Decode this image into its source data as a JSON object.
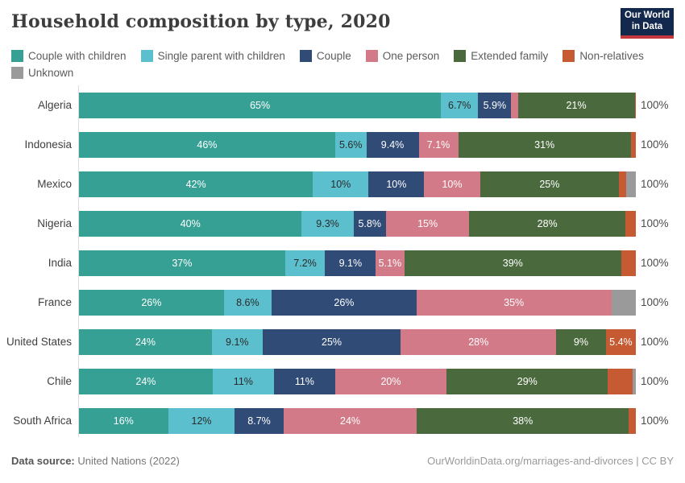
{
  "header": {
    "title": "Household composition by type, 2020",
    "logo_line1": "Our World",
    "logo_line2": "in Data",
    "logo_bg": "#12294d",
    "logo_stripe": "#c3383c"
  },
  "legend": [
    {
      "label": "Couple with children",
      "color": "#36a095",
      "dark_text": false
    },
    {
      "label": "Single parent with children",
      "color": "#5cbfce",
      "dark_text": true
    },
    {
      "label": "Couple",
      "color": "#2f4b76",
      "dark_text": false
    },
    {
      "label": "One person",
      "color": "#d37a89",
      "dark_text": false
    },
    {
      "label": "Extended family",
      "color": "#4a6a3e",
      "dark_text": false
    },
    {
      "label": "Non-relatives",
      "color": "#c65a33",
      "dark_text": false
    },
    {
      "label": "Unknown",
      "color": "#9a9a9a",
      "dark_text": false
    }
  ],
  "chart_data": {
    "type": "bar",
    "stacked": true,
    "horizontal": true,
    "unit": "%",
    "x_range": [
      0,
      100
    ],
    "legend_position": "top",
    "title": "Household composition by type, 2020",
    "series_names": [
      "Couple with children",
      "Single parent with children",
      "Couple",
      "One person",
      "Extended family",
      "Non-relatives",
      "Unknown"
    ],
    "rows": [
      {
        "country": "Algeria",
        "values": [
          65,
          6.7,
          5.9,
          1.2,
          21,
          0.2,
          0
        ],
        "labels": [
          "65%",
          "6.7%",
          "5.9%",
          "",
          "21%",
          "",
          ""
        ],
        "total_label": "100%"
      },
      {
        "country": "Indonesia",
        "values": [
          46,
          5.6,
          9.4,
          7.1,
          31,
          0.9,
          0
        ],
        "labels": [
          "46%",
          "5.6%",
          "9.4%",
          "7.1%",
          "31%",
          "",
          ""
        ],
        "total_label": "100%"
      },
      {
        "country": "Mexico",
        "values": [
          42,
          10,
          10,
          10,
          25,
          1.3,
          1.7
        ],
        "labels": [
          "42%",
          "10%",
          "10%",
          "10%",
          "25%",
          "",
          ""
        ],
        "total_label": "100%"
      },
      {
        "country": "Nigeria",
        "values": [
          40,
          9.3,
          5.8,
          15,
          28,
          1.9,
          0
        ],
        "labels": [
          "40%",
          "9.3%",
          "5.8%",
          "15%",
          "28%",
          "",
          ""
        ],
        "total_label": "100%"
      },
      {
        "country": "India",
        "values": [
          37,
          7.2,
          9.1,
          5.1,
          39,
          2.6,
          0
        ],
        "labels": [
          "37%",
          "7.2%",
          "9.1%",
          "5.1%",
          "39%",
          "",
          ""
        ],
        "total_label": "100%"
      },
      {
        "country": "France",
        "values": [
          26,
          8.6,
          26,
          35,
          0,
          0,
          4.4
        ],
        "labels": [
          "26%",
          "8.6%",
          "26%",
          "35%",
          "",
          "",
          ""
        ],
        "total_label": "100%"
      },
      {
        "country": "United States",
        "values": [
          24,
          9.1,
          25,
          28,
          9,
          5.4,
          0
        ],
        "labels": [
          "24%",
          "9.1%",
          "25%",
          "28%",
          "9%",
          "5.4%",
          ""
        ],
        "total_label": "100%"
      },
      {
        "country": "Chile",
        "values": [
          24,
          11,
          11,
          20,
          29,
          4.4,
          0.6
        ],
        "labels": [
          "24%",
          "11%",
          "11%",
          "20%",
          "29%",
          "",
          ""
        ],
        "total_label": "100%"
      },
      {
        "country": "South Africa",
        "values": [
          16,
          12,
          8.7,
          24,
          38,
          1.3,
          0
        ],
        "labels": [
          "16%",
          "12%",
          "8.7%",
          "24%",
          "38%",
          "",
          ""
        ],
        "total_label": "100%"
      }
    ]
  },
  "footer": {
    "source_label": "Data source:",
    "source_value": "United Nations (2022)",
    "license": "OurWorldinData.org/marriages-and-divorces | CC BY"
  }
}
